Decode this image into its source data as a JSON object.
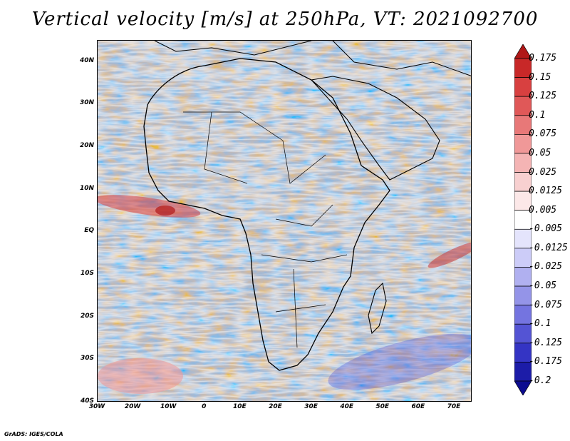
{
  "title": "Vertical velocity [m/s] at 250hPa, VT: 2021092700",
  "credit": "GrADS: IGES/COLA",
  "map": {
    "region": "Africa",
    "lat_range": [
      -40,
      45
    ],
    "lon_range": [
      -30,
      75
    ],
    "lat_labels": [
      "40N",
      "30N",
      "20N",
      "10N",
      "EQ",
      "10S",
      "20S",
      "30S",
      "40S"
    ],
    "lat_values": [
      40,
      30,
      20,
      10,
      0,
      -10,
      -20,
      -30,
      -40
    ],
    "lon_labels": [
      "30W",
      "20W",
      "10W",
      "0",
      "10E",
      "20E",
      "30E",
      "40E",
      "50E",
      "60E",
      "70E"
    ],
    "lon_values": [
      -30,
      -20,
      -10,
      0,
      10,
      20,
      30,
      40,
      50,
      60,
      70
    ]
  },
  "colorbar": {
    "labels": [
      "0.175",
      "0.15",
      "0.125",
      "0.1",
      "0.075",
      "0.05",
      "0.025",
      "0.0125",
      "0.005",
      "-0.005",
      "-0.0125",
      "-0.025",
      "-0.05",
      "-0.075",
      "-0.1",
      "-0.125",
      "-0.175",
      "-0.2"
    ],
    "colors": [
      "#b01818",
      "#c82828",
      "#d84040",
      "#e05858",
      "#e87878",
      "#f09898",
      "#f4b4b4",
      "#f8d0d0",
      "#fce8e8",
      "#ffffff",
      "#e4e4fc",
      "#ccccf8",
      "#b0b0f0",
      "#9494e8",
      "#7474e0",
      "#5454d4",
      "#3434c4",
      "#1c1ca8",
      "#0c0c90"
    ]
  }
}
